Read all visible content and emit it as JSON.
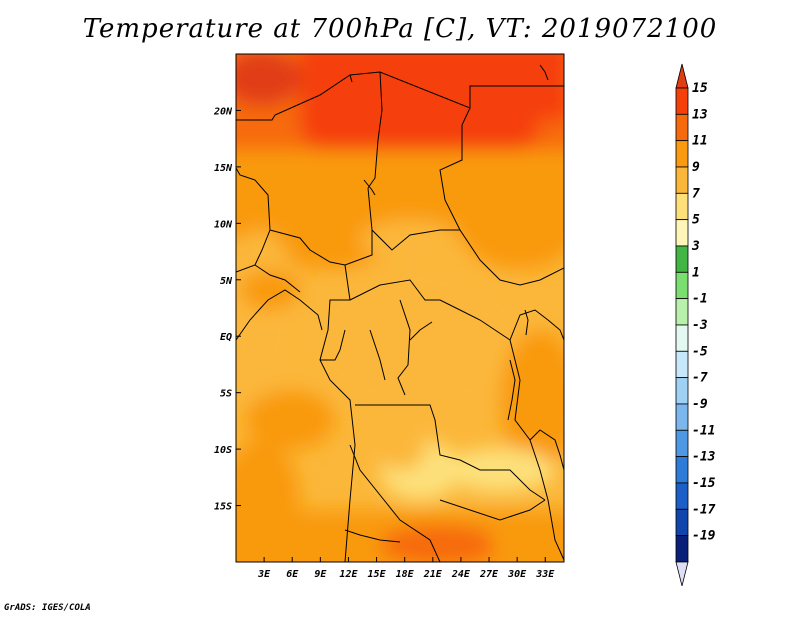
{
  "title": "Temperature at 700hPa [C], VT: 2019072100",
  "credit": "GrADS: IGES/COLA",
  "map": {
    "lon_labels": [
      "3E",
      "6E",
      "9E",
      "12E",
      "15E",
      "18E",
      "21E",
      "24E",
      "27E",
      "30E",
      "33E"
    ],
    "lon_values": [
      3,
      6,
      9,
      12,
      15,
      18,
      21,
      24,
      27,
      30,
      33
    ],
    "lat_labels": [
      "20N",
      "15N",
      "10N",
      "5N",
      "EQ",
      "5S",
      "10S",
      "15S"
    ],
    "lat_values": [
      20,
      15,
      10,
      5,
      0,
      -5,
      -10,
      -15
    ],
    "lon_range": [
      0,
      35
    ],
    "lat_range": [
      -20,
      25
    ]
  },
  "colorbar": {
    "labels": [
      "15",
      "13",
      "11",
      "9",
      "7",
      "5",
      "3",
      "1",
      "-1",
      "-3",
      "-5",
      "-7",
      "-9",
      "-11",
      "-13",
      "-15",
      "-17",
      "-19"
    ],
    "colors": [
      "#e13c12",
      "#f5400a",
      "#f76a0c",
      "#f99a10",
      "#fbb73a",
      "#fde07a",
      "#fff5b8",
      "#42b545",
      "#7ade70",
      "#b9f0ac",
      "#e2f8f0",
      "#c7e7fa",
      "#9fd1f5",
      "#7bb6ed",
      "#4f98e3",
      "#2e7bd8",
      "#1c5fc8",
      "#0f45ac",
      "#0a1f78",
      "#dde0f5"
    ]
  },
  "chart_data": {
    "type": "heatmap",
    "title": "Temperature at 700hPa [C], VT: 2019072100",
    "x_ticks": [
      "3E",
      "6E",
      "9E",
      "12E",
      "15E",
      "18E",
      "21E",
      "24E",
      "27E",
      "30E",
      "33E"
    ],
    "y_ticks": [
      "20N",
      "15N",
      "10N",
      "5N",
      "EQ",
      "5S",
      "10S",
      "15S"
    ],
    "legend_levels": [
      15,
      13,
      11,
      9,
      7,
      5,
      3,
      1,
      -1,
      -3,
      -5,
      -7,
      -9,
      -11,
      -13,
      -15,
      -17,
      -19
    ],
    "legend_placement": "right",
    "regions": [
      {
        "area": "far north-west (above 20N, west of 8E)",
        "value_range": [
          13,
          15
        ]
      },
      {
        "area": "north (12N-22N)",
        "value_range": [
          11,
          13
        ]
      },
      {
        "area": "central band (7N-12N)",
        "value_range": [
          9,
          11
        ]
      },
      {
        "area": "equatorial interior",
        "value_range": [
          7,
          9
        ]
      },
      {
        "area": "southern interior around 12S-16S, 18E-26E",
        "value_range": [
          5,
          7
        ]
      },
      {
        "area": "south-west and far south",
        "value_range": [
          9,
          11
        ]
      }
    ]
  }
}
